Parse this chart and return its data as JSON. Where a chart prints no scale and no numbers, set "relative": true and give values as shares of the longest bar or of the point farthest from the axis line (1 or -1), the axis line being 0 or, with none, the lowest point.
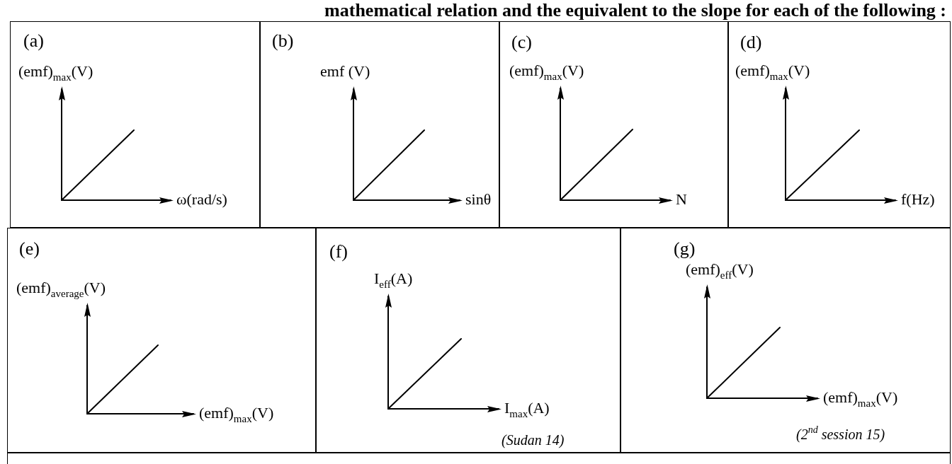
{
  "chart_data": [
    {
      "type": "line",
      "title": "(a)",
      "ylabel": "(emf)$_{max}$(V)",
      "xlabel": "ω(rad/s)",
      "categories": [
        null,
        null
      ],
      "values": [
        0,
        1
      ],
      "color": "#000000",
      "relative": true,
      "grid": false,
      "annotations": [
        "mathematical relation and the equivalent to the slope for each of the following :"
      ]
    },
    {
      "type": "line",
      "title": "(b)",
      "ylabel": "emf (V)",
      "xlabel": "sinθ",
      "categories": [
        null,
        null
      ],
      "values": [
        0,
        1
      ],
      "color": "#000000",
      "relative": true,
      "grid": false
    },
    {
      "type": "line",
      "title": "(c)",
      "ylabel": "(emf)$_{max}$(V)",
      "xlabel": "N",
      "categories": [
        null,
        null
      ],
      "values": [
        0,
        1
      ],
      "color": "#000000",
      "relative": true,
      "grid": false
    },
    {
      "type": "line",
      "title": "(d)",
      "ylabel": "(emf)$_{max}$(V)",
      "xlabel": "f(Hz)",
      "categories": [
        null,
        null
      ],
      "values": [
        0,
        1
      ],
      "color": "#000000",
      "relative": true,
      "grid": false
    },
    {
      "type": "line",
      "title": "(e)",
      "ylabel": "(emf)$_{average}$(V)",
      "xlabel": "(emf)$_{max}$(V)",
      "categories": [
        null,
        null
      ],
      "values": [
        0,
        1
      ],
      "color": "#000000",
      "relative": true,
      "grid": false
    },
    {
      "type": "line",
      "title": "(f)",
      "ylabel": "I$_{eff}$(A)",
      "xlabel": "I$_{max}$(A)",
      "categories": [
        null,
        null
      ],
      "values": [
        0,
        1
      ],
      "color": "#000000",
      "relative": true,
      "grid": false,
      "annotations": [
        "(Sudan 14)"
      ]
    },
    {
      "type": "line",
      "title": "(g)",
      "ylabel": "(emf)$_{eff}$(V)",
      "xlabel": "(emf)$_{max}$(V)",
      "categories": [
        null,
        null
      ],
      "values": [
        0,
        1
      ],
      "color": "#000000",
      "relative": true,
      "grid": false,
      "annotations": [
        "(2$^{nd}$ session 15)"
      ]
    }
  ]
}
